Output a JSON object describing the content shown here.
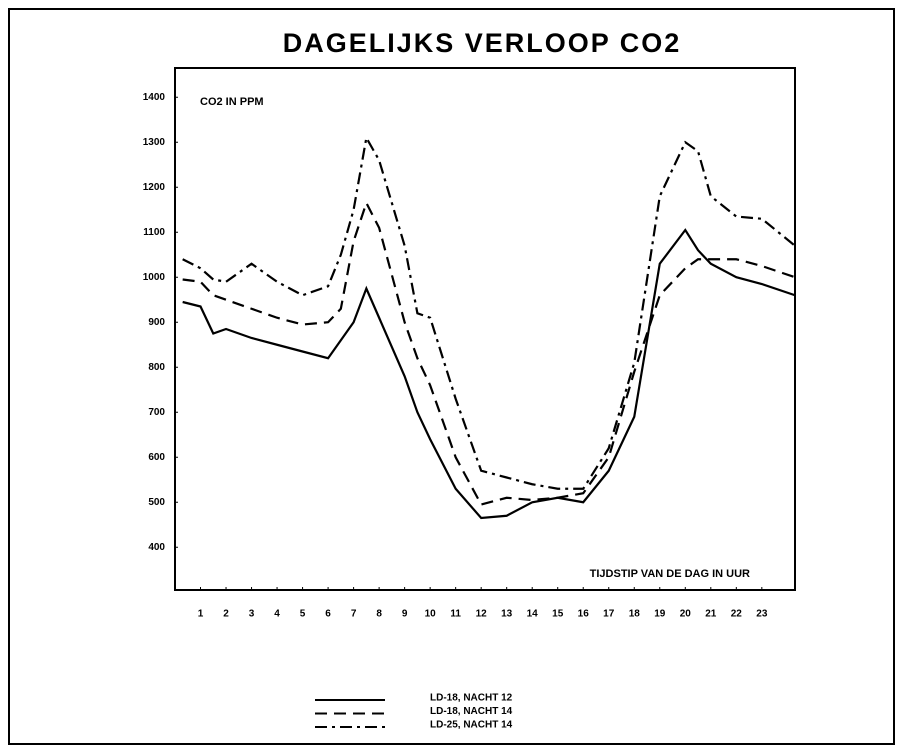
{
  "chart_data": {
    "type": "line",
    "title": "DAGELIJKS VERLOOP CO2",
    "y_label": "CO2 IN PPM",
    "x_label": "TIJDSTIP VAN DE DAG IN UUR",
    "x": [
      0.3,
      1,
      1.5,
      2,
      3,
      4,
      5,
      6,
      6.5,
      7,
      7.5,
      8,
      9,
      9.5,
      10,
      11,
      12,
      13,
      14,
      15,
      16,
      17,
      18,
      19,
      20,
      20.5,
      21,
      22,
      23,
      24.3
    ],
    "series": [
      {
        "name": "LD-18, NACHT 12",
        "color": "#000000",
        "dash": "solid",
        "values": [
          945,
          935,
          875,
          885,
          865,
          850,
          835,
          820,
          860,
          900,
          975,
          910,
          780,
          700,
          640,
          530,
          465,
          470,
          500,
          510,
          500,
          570,
          690,
          1030,
          1105,
          1060,
          1030,
          1000,
          985,
          960
        ]
      },
      {
        "name": "LD-18, NACHT 14",
        "color": "#000000",
        "dash": "dashed",
        "values": [
          995,
          990,
          960,
          950,
          930,
          910,
          895,
          900,
          930,
          1080,
          1165,
          1110,
          900,
          820,
          760,
          600,
          495,
          510,
          505,
          510,
          520,
          600,
          790,
          960,
          1020,
          1040,
          1040,
          1040,
          1025,
          1000
        ]
      },
      {
        "name": "LD-25, NACHT 14",
        "color": "#000000",
        "dash": "dashdot",
        "values": [
          1040,
          1020,
          995,
          990,
          1030,
          990,
          960,
          980,
          1050,
          1150,
          1310,
          1260,
          1070,
          920,
          910,
          730,
          570,
          555,
          540,
          530,
          530,
          620,
          810,
          1180,
          1300,
          1280,
          1180,
          1135,
          1130,
          1070
        ]
      }
    ],
    "xlim": [
      0,
      24.3
    ],
    "xticks": [
      1,
      2,
      3,
      4,
      5,
      6,
      7,
      8,
      9,
      10,
      11,
      12,
      13,
      14,
      15,
      16,
      17,
      18,
      19,
      20,
      21,
      22,
      23
    ],
    "ylim": [
      305,
      1465
    ],
    "yticks": [
      400,
      500,
      600,
      700,
      800,
      900,
      1000,
      1100,
      1200,
      1300,
      1400
    ],
    "grid": false
  }
}
